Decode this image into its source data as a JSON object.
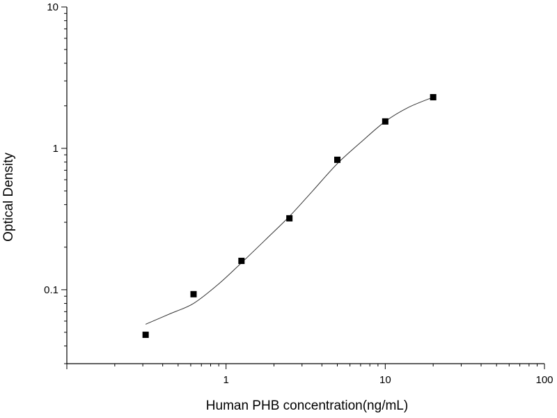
{
  "chart_data": {
    "type": "scatter",
    "title": "",
    "xlabel": "Human PHB concentration(ng/mL)",
    "ylabel": "Optical Density",
    "xscale": "log",
    "yscale": "log",
    "xlim": [
      0.1,
      100
    ],
    "ylim": [
      0.03,
      10
    ],
    "x_tick_labels": [
      "1",
      "10",
      "100"
    ],
    "y_tick_labels": [
      "0.1",
      "1",
      "10"
    ],
    "grid": false,
    "legend": "none",
    "series": [
      {
        "marker": "square",
        "color": "#000000",
        "points": [
          {
            "x": 0.3125,
            "y": 0.048
          },
          {
            "x": 0.625,
            "y": 0.093
          },
          {
            "x": 1.25,
            "y": 0.16
          },
          {
            "x": 2.5,
            "y": 0.32
          },
          {
            "x": 5,
            "y": 0.83
          },
          {
            "x": 10,
            "y": 1.55
          },
          {
            "x": 20,
            "y": 2.3
          }
        ]
      }
    ],
    "fit_curve": {
      "color": "#333333",
      "points": [
        {
          "x": 0.3125,
          "y": 0.057
        },
        {
          "x": 0.45,
          "y": 0.068
        },
        {
          "x": 0.625,
          "y": 0.08
        },
        {
          "x": 0.9,
          "y": 0.11
        },
        {
          "x": 1.25,
          "y": 0.155
        },
        {
          "x": 1.8,
          "y": 0.23
        },
        {
          "x": 2.5,
          "y": 0.33
        },
        {
          "x": 3.5,
          "y": 0.5
        },
        {
          "x": 5,
          "y": 0.78
        },
        {
          "x": 7,
          "y": 1.1
        },
        {
          "x": 10,
          "y": 1.55
        },
        {
          "x": 14,
          "y": 1.95
        },
        {
          "x": 20,
          "y": 2.3
        }
      ]
    }
  }
}
